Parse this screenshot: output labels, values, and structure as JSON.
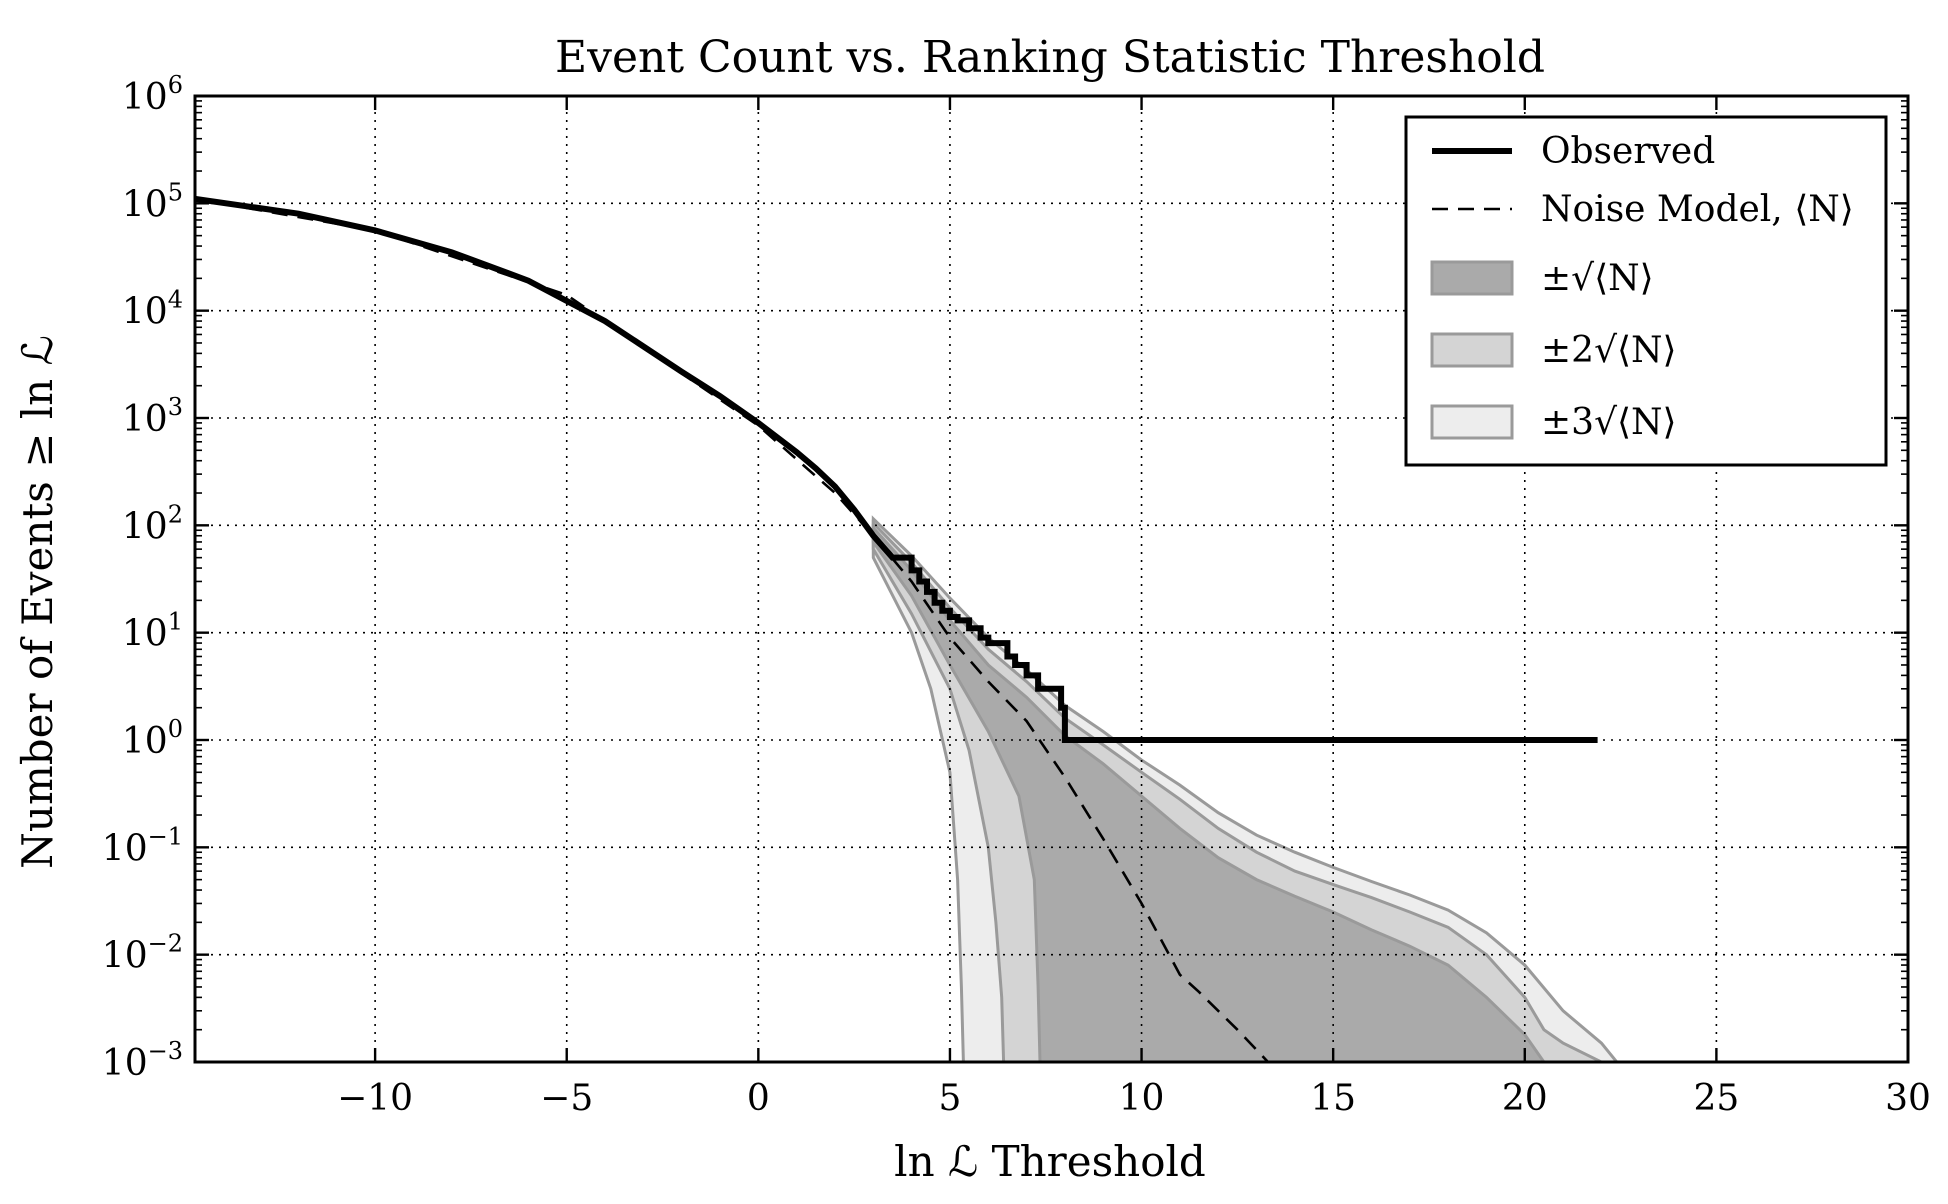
{
  "chart_data": {
    "type": "line",
    "title": "Event Count vs. Ranking Statistic Threshold",
    "xlabel": "ln ℒ Threshold",
    "ylabel": "Number of Events ≥ ln ℒ",
    "xlim": [
      -14.7,
      30
    ],
    "ylim": [
      0.001,
      1000000
    ],
    "yscale": "log",
    "grid": true,
    "legend_position": "top-right",
    "x_ticks": [
      -10,
      -5,
      0,
      5,
      10,
      15,
      20,
      25,
      30
    ],
    "x_tick_labels": [
      "−10",
      "−5",
      "0",
      "5",
      "10",
      "15",
      "20",
      "25",
      "30"
    ],
    "y_ticks": [
      0.001,
      0.01,
      0.1,
      1,
      10,
      100,
      1000,
      10000,
      100000,
      1000000
    ],
    "y_tick_exponents": [
      "−3",
      "−2",
      "−1",
      "0",
      "1",
      "2",
      "3",
      "4",
      "5",
      "6"
    ],
    "y_tick_base": "10",
    "series": [
      {
        "name": "Observed",
        "style": "step",
        "x": [
          -14.7,
          -12,
          -10,
          -8,
          -6,
          -4,
          -2,
          -1,
          0,
          1,
          1.5,
          2,
          2.5,
          3,
          3.5,
          4,
          4.2,
          4.4,
          4.6,
          4.8,
          5.0,
          5.2,
          5.5,
          5.8,
          6.0,
          6.2,
          6.5,
          6.7,
          7.0,
          7.3,
          7.6,
          7.9,
          8.0,
          21.9
        ],
        "y": [
          110000,
          80000,
          56000,
          35000,
          19000,
          8000,
          2700,
          1600,
          900,
          480,
          340,
          230,
          140,
          80,
          50,
          38,
          30,
          24,
          19,
          16,
          14,
          13,
          11,
          9,
          8,
          8,
          6,
          5,
          4,
          3,
          3,
          2,
          1,
          1
        ]
      },
      {
        "name": "Noise Model, ⟨N⟩",
        "style": "dashed",
        "x": [
          -14.7,
          -10,
          -5,
          0,
          2,
          3,
          4,
          5,
          6,
          7,
          8,
          9,
          10,
          10.5,
          11,
          11.5,
          12,
          12.5,
          13,
          13.3
        ],
        "y": [
          110000,
          56000,
          14000,
          850,
          200,
          80,
          30,
          9,
          3.5,
          1.5,
          0.45,
          0.12,
          0.03,
          0.014,
          0.0065,
          0.0045,
          0.003,
          0.002,
          0.0013,
          0.001
        ]
      }
    ],
    "bands": [
      {
        "name": "±√⟨N⟩",
        "color": "#aaaaaa",
        "lower_x": [
          3,
          4,
          5,
          6,
          6.8,
          7.2,
          7.3,
          7.35
        ],
        "lower_y": [
          70,
          22,
          5,
          1.2,
          0.3,
          0.05,
          0.005,
          0.001
        ],
        "upper_x": [
          3,
          4,
          5,
          6,
          7,
          8,
          9,
          10,
          11,
          12,
          13,
          14,
          15,
          16,
          17,
          18,
          19,
          20,
          20.5
        ],
        "upper_y": [
          95,
          38,
          13,
          5,
          2.5,
          1.1,
          0.6,
          0.3,
          0.15,
          0.08,
          0.05,
          0.035,
          0.025,
          0.017,
          0.012,
          0.008,
          0.004,
          0.0018,
          0.001
        ]
      },
      {
        "name": "±2√⟨N⟩",
        "color": "#d4d4d4",
        "lower_x": [
          3,
          4,
          5,
          5.5,
          6,
          6.2,
          6.35,
          6.4
        ],
        "lower_y": [
          60,
          15,
          3,
          0.8,
          0.1,
          0.02,
          0.004,
          0.001
        ],
        "upper_x": [
          3,
          4,
          5,
          6,
          7,
          8,
          9,
          10,
          11,
          12,
          13,
          14,
          15,
          16,
          17,
          18,
          19,
          20,
          20.5,
          21,
          22
        ],
        "upper_y": [
          105,
          45,
          17,
          7,
          3.5,
          1.6,
          0.9,
          0.5,
          0.28,
          0.15,
          0.09,
          0.06,
          0.045,
          0.034,
          0.025,
          0.018,
          0.01,
          0.004,
          0.002,
          0.0015,
          0.001
        ]
      },
      {
        "name": "±3√⟨N⟩",
        "color": "#ededed",
        "lower_x": [
          3,
          4,
          4.5,
          5,
          5.2,
          5.3,
          5.35
        ],
        "lower_y": [
          50,
          10,
          3,
          0.5,
          0.05,
          0.005,
          0.001
        ],
        "upper_x": [
          3,
          4,
          5,
          6,
          7,
          8,
          9,
          10,
          11,
          12,
          13,
          14,
          15,
          16,
          17,
          18,
          19,
          20,
          21,
          22,
          22.4
        ],
        "upper_y": [
          115,
          52,
          21,
          9,
          4.5,
          2.1,
          1.2,
          0.65,
          0.38,
          0.21,
          0.13,
          0.09,
          0.065,
          0.048,
          0.036,
          0.026,
          0.016,
          0.008,
          0.003,
          0.0015,
          0.001
        ]
      }
    ],
    "legend": [
      {
        "label": "Observed",
        "kind": "solid"
      },
      {
        "label": "Noise Model, ⟨N⟩",
        "kind": "dashed"
      },
      {
        "label": "±√⟨N⟩",
        "kind": "patch",
        "color": "#aaaaaa"
      },
      {
        "label": "±2√⟨N⟩",
        "kind": "patch",
        "color": "#d4d4d4"
      },
      {
        "label": "±3√⟨N⟩",
        "kind": "patch",
        "color": "#ededed"
      }
    ]
  }
}
